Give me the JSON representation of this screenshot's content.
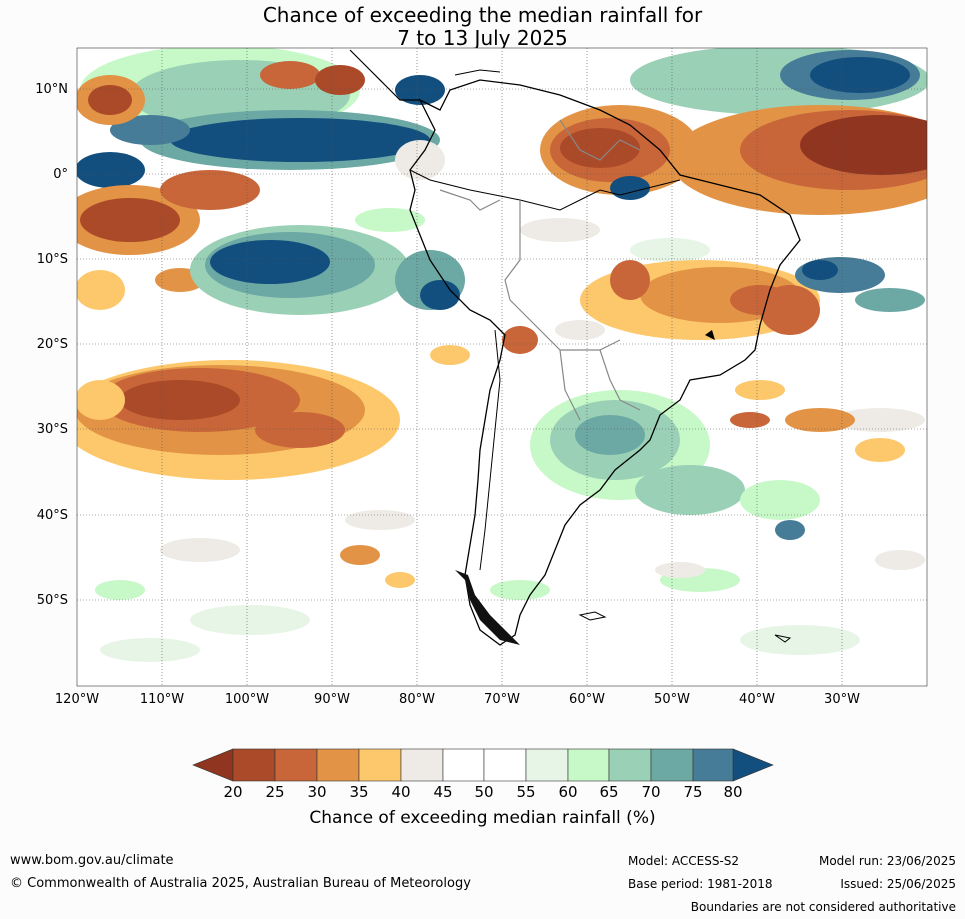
{
  "title": {
    "line1": "Chance of exceeding the median rainfall for",
    "line2": "7 to 13 July 2025"
  },
  "map": {
    "lat_labels": [
      "10°N",
      "0°",
      "10°S",
      "20°S",
      "30°S",
      "40°S",
      "50°S"
    ],
    "lon_labels": [
      "120°W",
      "110°W",
      "100°W",
      "90°W",
      "80°W",
      "70°W",
      "60°W",
      "50°W",
      "40°W",
      "30°W"
    ]
  },
  "colorbar": {
    "ticks": [
      "20",
      "25",
      "30",
      "35",
      "40",
      "45",
      "50",
      "55",
      "60",
      "65",
      "70",
      "75",
      "80"
    ],
    "colors": [
      "#8f3520",
      "#ab4a28",
      "#c8663a",
      "#e29345",
      "#fdc86c",
      "#eeebe6",
      "#ffffff",
      "#ffffff",
      "#e6f5e6",
      "#c6f8c8",
      "#9ad0b6",
      "#6ca8a4",
      "#477c98",
      "#124f7e"
    ],
    "label": "Chance of exceeding median rainfall (%)"
  },
  "footer": {
    "website": "www.bom.gov.au/climate",
    "copyright": "© Commonwealth of Australia 2025, Australian Bureau of Meteorology",
    "model": "Model: ACCESS-S2",
    "base_period": "Base period: 1981-2018",
    "model_run": "Model run: 23/06/2025",
    "issued": "Issued: 25/06/2025",
    "disclaimer": "Boundaries are not considered authoritative"
  }
}
